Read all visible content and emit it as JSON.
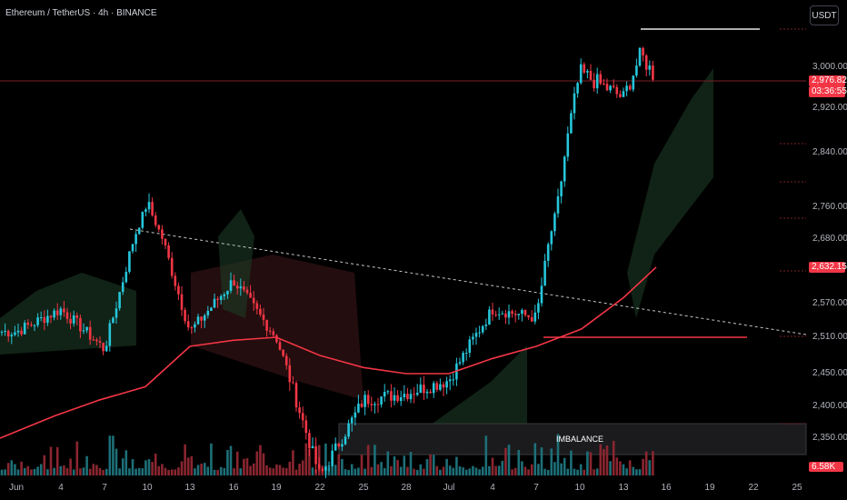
{
  "header": {
    "symbol_title": "Ethereum / TetherUS · 4h · BINANCE",
    "currency_button": "USDT"
  },
  "price_tags": {
    "last_price": "2,976.82",
    "countdown": "03:36:55",
    "ma_value": "2,632.15",
    "volume": "6.58K"
  },
  "annotation": {
    "imbalance_label": "IMBALANCE"
  },
  "colors": {
    "background": "#000000",
    "up": "#26c6da",
    "down": "#f23645",
    "ma_line": "#f23645",
    "trendline": "#c7c7c7",
    "cloud_green": "#1b3a25",
    "cloud_red": "#3a1618",
    "imbalance_zone": "#1b1b1e"
  },
  "chart_data": {
    "type": "candlestick",
    "y_axis": {
      "ticks": [
        "3,000.00",
        "2,920.00",
        "2,840.00",
        "2,760.00",
        "2,680.00",
        "2,570.00",
        "2,510.00",
        "2,450.00",
        "2,400.00",
        "2,350.00"
      ],
      "tick_values": [
        3000,
        2920,
        2840,
        2760,
        2680,
        2570,
        2510,
        2450,
        2400,
        2350
      ]
    },
    "x_axis": {
      "ticks": [
        "Jun",
        "4",
        "7",
        "10",
        "13",
        "16",
        "19",
        "22",
        "25",
        "28",
        "Jul",
        "4",
        "7",
        "10",
        "13",
        "16",
        "19",
        "22",
        "25"
      ]
    },
    "ohlc_anchors": [
      {
        "t": "Jun",
        "p": 2520
      },
      {
        "t": "4",
        "p": 2560
      },
      {
        "t": "7",
        "p": 2490
      },
      {
        "t": "10",
        "p": 2770
      },
      {
        "t": "13",
        "p": 2520
      },
      {
        "t": "16",
        "p": 2610
      },
      {
        "t": "19",
        "p": 2510
      },
      {
        "t": "22",
        "p": 2290
      },
      {
        "t": "25",
        "p": 2410
      },
      {
        "t": "28",
        "p": 2420
      },
      {
        "t": "Jul",
        "p": 2440
      },
      {
        "t": "4",
        "p": 2560
      },
      {
        "t": "7",
        "p": 2545
      },
      {
        "t": "10",
        "p": 2990
      },
      {
        "t": "13",
        "p": 2940
      },
      {
        "t": "14",
        "p": 3025
      },
      {
        "t": "15",
        "p": 2976.82
      }
    ],
    "moving_average_last": 2632.15,
    "last_price": 2976.82,
    "levels": [
      {
        "name": "recent high",
        "value": 3040
      },
      {
        "name": "support",
        "value": 2516
      }
    ]
  }
}
